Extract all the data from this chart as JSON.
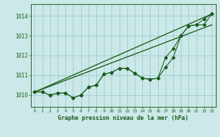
{
  "title": "Graphe pression niveau de la mer (hPa)",
  "bg_color": "#cce8e8",
  "grid_color": "#99cccc",
  "line_color": "#1a5c1a",
  "xlim": [
    -0.5,
    23.5
  ],
  "ylim": [
    1009.4,
    1014.6
  ],
  "yticks": [
    1010,
    1011,
    1012,
    1013,
    1014
  ],
  "xticks": [
    0,
    1,
    2,
    3,
    4,
    5,
    6,
    7,
    8,
    9,
    10,
    11,
    12,
    13,
    14,
    15,
    16,
    17,
    18,
    19,
    20,
    21,
    22,
    23
  ],
  "trend1_x": [
    0,
    23
  ],
  "trend1_y": [
    1010.15,
    1014.1
  ],
  "trend2_x": [
    0,
    23
  ],
  "trend2_y": [
    1010.15,
    1013.55
  ],
  "wiggly_x": [
    0,
    1,
    2,
    3,
    4,
    5,
    6,
    7,
    8,
    9,
    10,
    11,
    12,
    13,
    14,
    15,
    16,
    17,
    18,
    19,
    20,
    21,
    22,
    23
  ],
  "wiggly_y": [
    1010.15,
    1010.15,
    1010.0,
    1010.1,
    1010.1,
    1009.85,
    1010.0,
    1010.4,
    1010.5,
    1011.05,
    1011.15,
    1011.35,
    1011.35,
    1011.1,
    1010.85,
    1010.8,
    1010.85,
    1011.9,
    1012.35,
    1013.0,
    1013.5,
    1013.55,
    1013.85,
    1014.1
  ],
  "smooth_x": [
    0,
    1,
    2,
    3,
    4,
    5,
    6,
    7,
    8,
    9,
    10,
    11,
    12,
    13,
    14,
    15,
    16,
    17,
    18,
    19,
    20,
    21,
    22,
    23
  ],
  "smooth_y": [
    1010.15,
    1010.15,
    1010.0,
    1010.1,
    1010.1,
    1009.85,
    1010.0,
    1010.4,
    1010.5,
    1011.05,
    1011.15,
    1011.35,
    1011.35,
    1011.1,
    1010.85,
    1010.8,
    1010.85,
    1011.4,
    1011.9,
    1013.0,
    1013.5,
    1013.55,
    1013.55,
    1014.1
  ]
}
